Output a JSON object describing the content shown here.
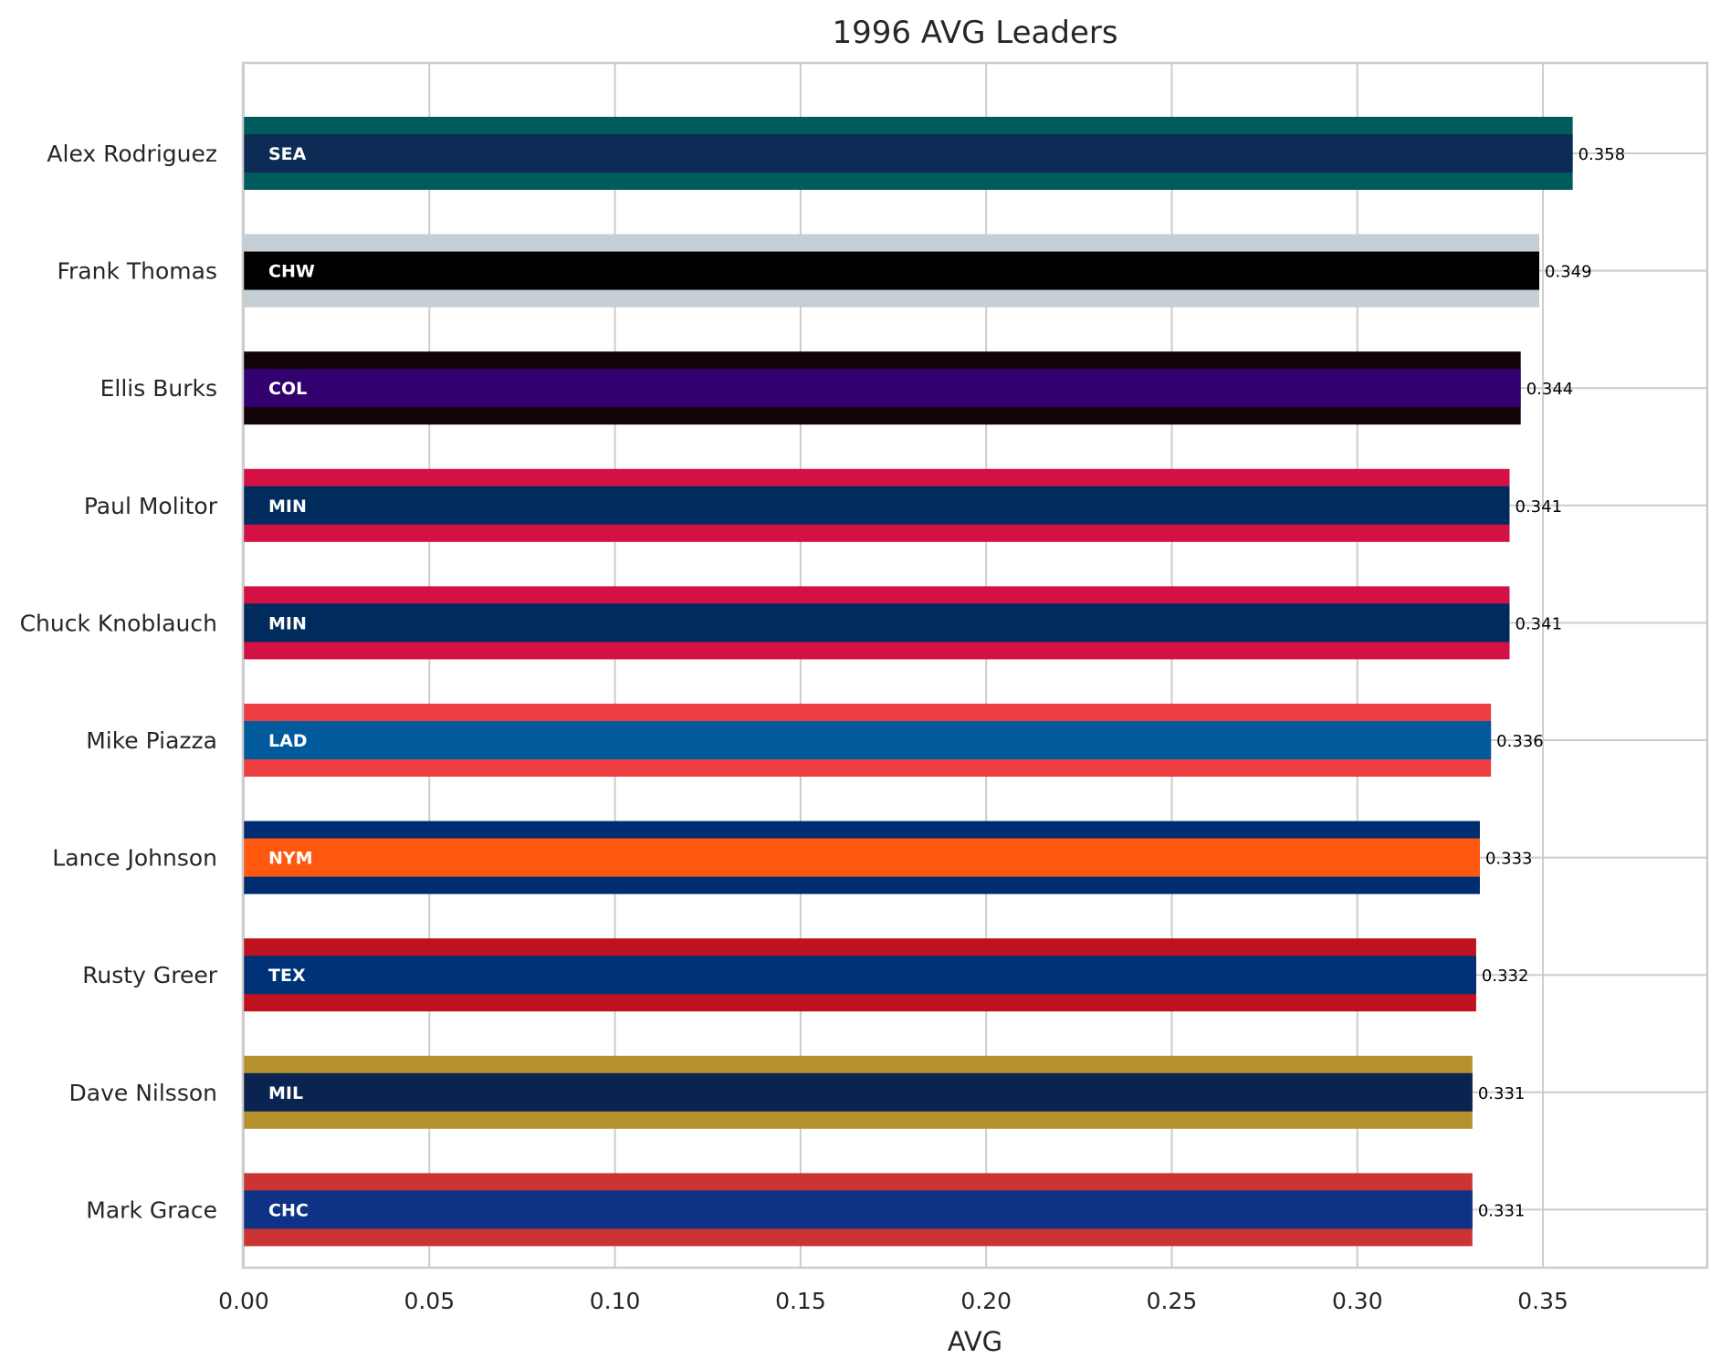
{
  "chart_data": {
    "type": "bar",
    "orientation": "horizontal",
    "title": "1996 AVG Leaders",
    "xlabel": "AVG",
    "ylabel": "",
    "xlim": [
      0,
      0.394
    ],
    "xticks": [
      "0.00",
      "0.05",
      "0.10",
      "0.15",
      "0.20",
      "0.25",
      "0.30",
      "0.35"
    ],
    "grid": true,
    "categories": [
      "Alex Rodriguez",
      "Frank Thomas",
      "Ellis Burks",
      "Paul Molitor",
      "Chuck Knoblauch",
      "Mike Piazza",
      "Lance Johnson",
      "Rusty Greer",
      "Dave Nilsson",
      "Mark Grace"
    ],
    "values": [
      0.358,
      0.349,
      0.344,
      0.341,
      0.341,
      0.336,
      0.333,
      0.332,
      0.331,
      0.331
    ],
    "value_labels": [
      "0.358",
      "0.349",
      "0.344",
      "0.341",
      "0.341",
      "0.336",
      "0.333",
      "0.332",
      "0.331",
      "0.331"
    ],
    "teams": [
      "SEA",
      "CHW",
      "COL",
      "MIN",
      "MIN",
      "LAD",
      "NYM",
      "TEX",
      "MIL",
      "CHC"
    ],
    "outer_colors": [
      "#005c5c",
      "#c4ced4",
      "#120309",
      "#d31145",
      "#d31145",
      "#ef3e42",
      "#002d72",
      "#c0111f",
      "#b6922e",
      "#cc3433"
    ],
    "inner_colors": [
      "#0c2c56",
      "#000000",
      "#33006f",
      "#002b5c",
      "#002b5c",
      "#005a9c",
      "#ff5910",
      "#003278",
      "#0a2351",
      "#0e3386"
    ]
  }
}
